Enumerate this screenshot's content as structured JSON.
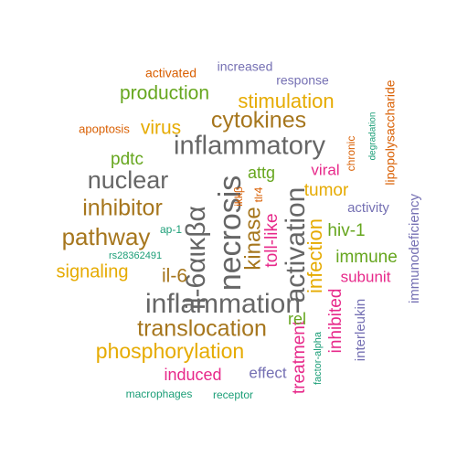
{
  "palette": {
    "teal": "#1b9e77",
    "orange": "#d95f02",
    "purple": "#7570b3",
    "magenta": "#e7298a",
    "green": "#66a61e",
    "mustard": "#e6ab02",
    "brown": "#a6761d",
    "gray": "#666666"
  },
  "words": [
    {
      "text": "il-6αικβα",
      "color": "gray",
      "weight": 10
    },
    {
      "text": "necrosis",
      "color": "gray",
      "weight": 10
    },
    {
      "text": "activation",
      "color": "gray",
      "weight": 9
    },
    {
      "text": "inflammation",
      "color": "gray",
      "weight": 9
    },
    {
      "text": "inflammatory",
      "color": "gray",
      "weight": 9
    },
    {
      "text": "cytokines",
      "color": "brown",
      "weight": 8
    },
    {
      "text": "translocation",
      "color": "brown",
      "weight": 8
    },
    {
      "text": "nuclear",
      "color": "gray",
      "weight": 8
    },
    {
      "text": "pathway",
      "color": "brown",
      "weight": 8
    },
    {
      "text": "kinase",
      "color": "brown",
      "weight": 7
    },
    {
      "text": "inhibitor",
      "color": "brown",
      "weight": 7
    },
    {
      "text": "phosphorylation",
      "color": "mustard",
      "weight": 7
    },
    {
      "text": "stimulation",
      "color": "mustard",
      "weight": 6
    },
    {
      "text": "production",
      "color": "green",
      "weight": 6
    },
    {
      "text": "infection",
      "color": "mustard",
      "weight": 6
    },
    {
      "text": "il-6",
      "color": "brown",
      "weight": 6
    },
    {
      "text": "virus",
      "color": "mustard",
      "weight": 6
    },
    {
      "text": "signaling",
      "color": "mustard",
      "weight": 5
    },
    {
      "text": "toll-like",
      "color": "magenta",
      "weight": 5
    },
    {
      "text": "tumor",
      "color": "mustard",
      "weight": 5
    },
    {
      "text": "immune",
      "color": "green",
      "weight": 5
    },
    {
      "text": "inhibited",
      "color": "magenta",
      "weight": 5
    },
    {
      "text": "hiv-1",
      "color": "green",
      "weight": 5
    },
    {
      "text": "treatment",
      "color": "magenta",
      "weight": 5
    },
    {
      "text": "pdtc",
      "color": "green",
      "weight": 5
    },
    {
      "text": "attg",
      "color": "green",
      "weight": 5
    },
    {
      "text": "rel",
      "color": "green",
      "weight": 5
    },
    {
      "text": "induced",
      "color": "magenta",
      "weight": 4
    },
    {
      "text": "subunit",
      "color": "magenta",
      "weight": 4
    },
    {
      "text": "viral",
      "color": "magenta",
      "weight": 4
    },
    {
      "text": "effect",
      "color": "purple",
      "weight": 4
    },
    {
      "text": "activity",
      "color": "purple",
      "weight": 4
    },
    {
      "text": "interleukin",
      "color": "purple",
      "weight": 4
    },
    {
      "text": "immunodeficiency",
      "color": "purple",
      "weight": 4
    },
    {
      "text": "lipopolysaccharide",
      "color": "orange",
      "weight": 3
    },
    {
      "text": "response",
      "color": "purple",
      "weight": 3
    },
    {
      "text": "increased",
      "color": "purple",
      "weight": 3
    },
    {
      "text": "activated",
      "color": "orange",
      "weight": 3
    },
    {
      "text": "apoptosis",
      "color": "orange",
      "weight": 3
    },
    {
      "text": "chronic",
      "color": "orange",
      "weight": 3
    },
    {
      "text": "ikkβ",
      "color": "orange",
      "weight": 2
    },
    {
      "text": "tlr4",
      "color": "orange",
      "weight": 2
    },
    {
      "text": "ap-1",
      "color": "teal",
      "weight": 2
    },
    {
      "text": "rs28362491",
      "color": "teal",
      "weight": 2
    },
    {
      "text": "degradation",
      "color": "teal",
      "weight": 2
    },
    {
      "text": "factor-alpha",
      "color": "teal",
      "weight": 2
    },
    {
      "text": "macrophages",
      "color": "teal",
      "weight": 2
    },
    {
      "text": "receptor",
      "color": "teal",
      "weight": 2
    }
  ]
}
